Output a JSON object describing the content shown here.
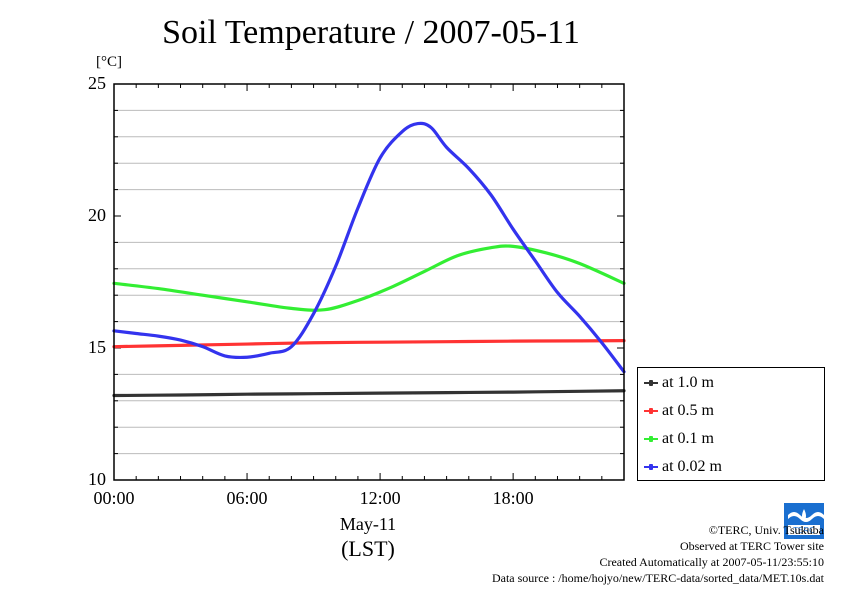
{
  "chart_data": {
    "type": "line",
    "title": "Soil Temperature / 2007-05-11",
    "ylabel": "[°C]",
    "xlabel": "May-11",
    "xlabel2": "(LST)",
    "xlim": [
      0,
      23
    ],
    "ylim": [
      10,
      25
    ],
    "x_ticks": [
      {
        "value": 0,
        "label": "00:00"
      },
      {
        "value": 6,
        "label": "06:00"
      },
      {
        "value": 12,
        "label": "12:00"
      },
      {
        "value": 18,
        "label": "18:00"
      }
    ],
    "y_ticks": [
      {
        "value": 10,
        "label": "10"
      },
      {
        "value": 15,
        "label": "15"
      },
      {
        "value": 20,
        "label": "20"
      },
      {
        "value": 25,
        "label": "25"
      }
    ],
    "y_grid": [
      11,
      12,
      13,
      14,
      16,
      17,
      18,
      19,
      21,
      22,
      23,
      24
    ],
    "grid": true,
    "legend_position": "bottom-right, outside plot",
    "series": [
      {
        "name": "at 1.0 m",
        "color": "#333333",
        "points": [
          [
            0,
            13.2
          ],
          [
            3,
            13.22
          ],
          [
            6,
            13.25
          ],
          [
            9,
            13.27
          ],
          [
            12,
            13.29
          ],
          [
            15,
            13.31
          ],
          [
            18,
            13.33
          ],
          [
            21,
            13.36
          ],
          [
            23,
            13.38
          ]
        ]
      },
      {
        "name": "at 0.5 m",
        "color": "#ff3333",
        "points": [
          [
            0,
            15.05
          ],
          [
            3,
            15.1
          ],
          [
            6,
            15.15
          ],
          [
            9,
            15.2
          ],
          [
            12,
            15.22
          ],
          [
            15,
            15.24
          ],
          [
            18,
            15.26
          ],
          [
            21,
            15.27
          ],
          [
            23,
            15.28
          ]
        ]
      },
      {
        "name": "at 0.1 m",
        "color": "#33ee33",
        "points": [
          [
            0,
            17.45
          ],
          [
            2,
            17.25
          ],
          [
            4,
            17.0
          ],
          [
            6,
            16.75
          ],
          [
            8,
            16.5
          ],
          [
            9.5,
            16.45
          ],
          [
            11,
            16.8
          ],
          [
            12.5,
            17.3
          ],
          [
            14,
            17.9
          ],
          [
            15.5,
            18.5
          ],
          [
            17,
            18.8
          ],
          [
            18,
            18.85
          ],
          [
            19.5,
            18.6
          ],
          [
            21,
            18.2
          ],
          [
            23,
            17.45
          ]
        ]
      },
      {
        "name": "at 0.02 m",
        "color": "#3333ee",
        "points": [
          [
            0,
            15.65
          ],
          [
            1,
            15.55
          ],
          [
            2,
            15.45
          ],
          [
            3,
            15.3
          ],
          [
            4,
            15.05
          ],
          [
            5,
            14.7
          ],
          [
            6,
            14.65
          ],
          [
            7,
            14.8
          ],
          [
            8,
            15.05
          ],
          [
            9,
            16.3
          ],
          [
            10,
            18.1
          ],
          [
            11,
            20.3
          ],
          [
            12,
            22.2
          ],
          [
            13,
            23.2
          ],
          [
            13.7,
            23.5
          ],
          [
            14.3,
            23.35
          ],
          [
            15,
            22.6
          ],
          [
            16,
            21.8
          ],
          [
            17,
            20.8
          ],
          [
            18,
            19.5
          ],
          [
            19,
            18.3
          ],
          [
            20,
            17.1
          ],
          [
            21,
            16.2
          ],
          [
            22,
            15.2
          ],
          [
            23,
            14.1
          ]
        ]
      }
    ]
  },
  "credits": {
    "copyright": "©TERC, Univ. Tsukuba",
    "site": "Observed at TERC Tower site",
    "created": "Created Automatically at 2007-05-11/23:55:10",
    "source": "Data source : /home/hojyo/new/TERC-data/sorted_data/MET.10s.dat"
  },
  "logo_text": "TERC"
}
